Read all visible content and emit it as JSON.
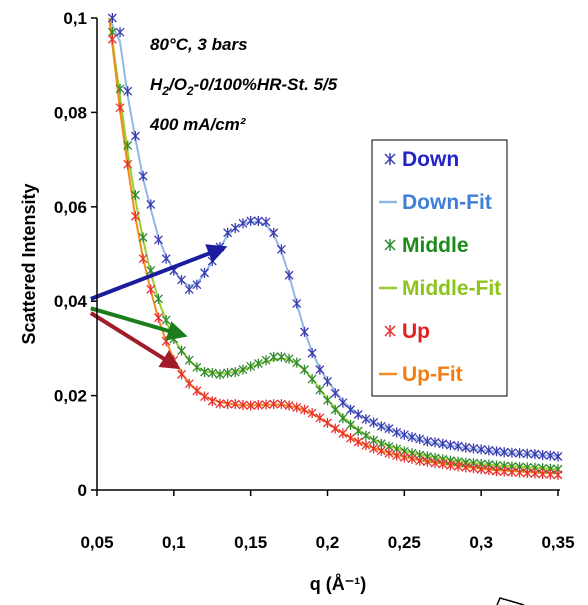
{
  "chart_data": {
    "type": "line",
    "title": "",
    "xlabel": "q (Å⁻¹)",
    "ylabel": "Scattered Intensity",
    "xlim": [
      0.05,
      0.35
    ],
    "ylim": [
      0,
      0.1
    ],
    "x_ticks": [
      "0,05",
      "0,1",
      "0,15",
      "0,2",
      "0,25",
      "0,3",
      "0,35"
    ],
    "y_ticks": [
      "0",
      "0,02",
      "0,04",
      "0,06",
      "0,08",
      "0,1"
    ],
    "grid": false,
    "legend_position": "right",
    "annotations": {
      "line1": "80°C, 3 bars",
      "line2_h": "H",
      "line2_sub1": "2",
      "line2_o": "/O",
      "line2_sub2": "2",
      "line2_rest": "-0/100%HR-St. 5/5",
      "line3": "400 mA/cm²"
    },
    "series": [
      {
        "name": "Down",
        "kind": "marker",
        "marker": "x",
        "color": "#3b3bb0",
        "x": [
          0.06,
          0.065,
          0.07,
          0.075,
          0.08,
          0.085,
          0.09,
          0.095,
          0.1,
          0.105,
          0.11,
          0.115,
          0.12,
          0.125,
          0.13,
          0.135,
          0.14,
          0.145,
          0.15,
          0.155,
          0.16,
          0.165,
          0.17,
          0.175,
          0.18,
          0.185,
          0.19,
          0.195,
          0.2,
          0.205,
          0.21,
          0.215,
          0.22,
          0.225,
          0.23,
          0.235,
          0.24,
          0.245,
          0.25,
          0.255,
          0.26,
          0.265,
          0.27,
          0.275,
          0.28,
          0.285,
          0.29,
          0.295,
          0.3,
          0.305,
          0.31,
          0.315,
          0.32,
          0.325,
          0.33,
          0.335,
          0.34,
          0.345,
          0.35
        ],
        "y": [
          0.1,
          0.097,
          0.0845,
          0.075,
          0.0665,
          0.0605,
          0.053,
          0.049,
          0.0465,
          0.0445,
          0.0425,
          0.0435,
          0.046,
          0.0485,
          0.0515,
          0.0545,
          0.0555,
          0.0565,
          0.057,
          0.057,
          0.0568,
          0.0545,
          0.051,
          0.0455,
          0.0395,
          0.0335,
          0.029,
          0.0255,
          0.023,
          0.0205,
          0.0185,
          0.017,
          0.016,
          0.015,
          0.0143,
          0.0135,
          0.013,
          0.0122,
          0.0117,
          0.0112,
          0.0108,
          0.0103,
          0.0101,
          0.0098,
          0.0095,
          0.0093,
          0.009,
          0.0088,
          0.0086,
          0.0084,
          0.0082,
          0.008,
          0.0079,
          0.0078,
          0.0077,
          0.0076,
          0.0074,
          0.0073,
          0.0071
        ]
      },
      {
        "name": "Down-Fit",
        "kind": "line",
        "color": "#8fb8e6",
        "x": [
          0.058,
          0.065,
          0.07,
          0.075,
          0.08,
          0.085,
          0.09,
          0.095,
          0.1,
          0.105,
          0.11,
          0.115,
          0.12,
          0.125,
          0.13,
          0.135,
          0.14,
          0.145,
          0.15,
          0.155,
          0.16,
          0.165,
          0.17,
          0.175,
          0.18,
          0.185,
          0.19,
          0.195,
          0.2,
          0.21,
          0.22,
          0.23,
          0.24,
          0.25,
          0.26,
          0.27,
          0.28,
          0.29,
          0.3,
          0.31,
          0.32,
          0.33,
          0.34,
          0.35
        ],
        "y": [
          0.1,
          0.095,
          0.0835,
          0.0745,
          0.066,
          0.0595,
          0.0535,
          0.0495,
          0.0465,
          0.0443,
          0.0432,
          0.0438,
          0.0458,
          0.0485,
          0.0512,
          0.054,
          0.0555,
          0.0565,
          0.0568,
          0.0568,
          0.0562,
          0.054,
          0.0505,
          0.0455,
          0.0395,
          0.0338,
          0.0292,
          0.0258,
          0.0232,
          0.0188,
          0.016,
          0.0142,
          0.0128,
          0.0116,
          0.0106,
          0.0099,
          0.0094,
          0.0089,
          0.0085,
          0.0081,
          0.0078,
          0.0076,
          0.0074,
          0.0072
        ]
      },
      {
        "name": "Middle",
        "kind": "marker",
        "marker": "x",
        "color": "#2f8a2f",
        "x": [
          0.06,
          0.065,
          0.07,
          0.075,
          0.08,
          0.085,
          0.09,
          0.095,
          0.1,
          0.105,
          0.11,
          0.115,
          0.12,
          0.125,
          0.13,
          0.135,
          0.14,
          0.145,
          0.15,
          0.155,
          0.16,
          0.165,
          0.17,
          0.175,
          0.18,
          0.185,
          0.19,
          0.195,
          0.2,
          0.205,
          0.21,
          0.215,
          0.22,
          0.225,
          0.23,
          0.235,
          0.24,
          0.245,
          0.25,
          0.255,
          0.26,
          0.265,
          0.27,
          0.275,
          0.28,
          0.285,
          0.29,
          0.295,
          0.3,
          0.305,
          0.31,
          0.315,
          0.32,
          0.325,
          0.33,
          0.335,
          0.34,
          0.345,
          0.35
        ],
        "y": [
          0.097,
          0.085,
          0.073,
          0.0625,
          0.0535,
          0.0465,
          0.0405,
          0.036,
          0.032,
          0.0295,
          0.0275,
          0.026,
          0.025,
          0.0248,
          0.0245,
          0.0248,
          0.025,
          0.0255,
          0.0262,
          0.0268,
          0.0275,
          0.0282,
          0.0282,
          0.0278,
          0.027,
          0.0255,
          0.0235,
          0.0212,
          0.019,
          0.017,
          0.0152,
          0.0138,
          0.0125,
          0.0115,
          0.0105,
          0.0098,
          0.0092,
          0.0087,
          0.0082,
          0.0078,
          0.0074,
          0.0071,
          0.0068,
          0.0065,
          0.0062,
          0.006,
          0.0058,
          0.0057,
          0.0055,
          0.0054,
          0.0052,
          0.0051,
          0.005,
          0.0049,
          0.0048,
          0.0047,
          0.0046,
          0.0045,
          0.0044
        ]
      },
      {
        "name": "Middle-Fit",
        "kind": "line",
        "color": "#9acd32",
        "x": [
          0.058,
          0.065,
          0.07,
          0.075,
          0.08,
          0.085,
          0.09,
          0.095,
          0.1,
          0.105,
          0.11,
          0.115,
          0.12,
          0.13,
          0.14,
          0.15,
          0.16,
          0.17,
          0.175,
          0.18,
          0.185,
          0.19,
          0.2,
          0.21,
          0.22,
          0.23,
          0.24,
          0.25,
          0.26,
          0.27,
          0.28,
          0.29,
          0.3,
          0.31,
          0.32,
          0.33,
          0.34,
          0.35
        ],
        "y": [
          0.1,
          0.0835,
          0.0715,
          0.0615,
          0.053,
          0.046,
          0.0402,
          0.0358,
          0.032,
          0.0295,
          0.0275,
          0.026,
          0.0252,
          0.0246,
          0.025,
          0.026,
          0.0272,
          0.0279,
          0.0277,
          0.0268,
          0.0254,
          0.0236,
          0.0192,
          0.0155,
          0.0127,
          0.0107,
          0.0093,
          0.0083,
          0.0075,
          0.0069,
          0.0063,
          0.0059,
          0.0055,
          0.0052,
          0.005,
          0.0048,
          0.0046,
          0.0044
        ]
      },
      {
        "name": "Up",
        "kind": "marker",
        "marker": "x",
        "color": "#e83030",
        "x": [
          0.06,
          0.065,
          0.07,
          0.075,
          0.08,
          0.085,
          0.09,
          0.095,
          0.1,
          0.105,
          0.11,
          0.115,
          0.12,
          0.125,
          0.13,
          0.135,
          0.14,
          0.145,
          0.15,
          0.155,
          0.16,
          0.165,
          0.17,
          0.175,
          0.18,
          0.185,
          0.19,
          0.195,
          0.2,
          0.205,
          0.21,
          0.215,
          0.22,
          0.225,
          0.23,
          0.235,
          0.24,
          0.245,
          0.25,
          0.255,
          0.26,
          0.265,
          0.27,
          0.275,
          0.28,
          0.285,
          0.29,
          0.295,
          0.3,
          0.305,
          0.31,
          0.315,
          0.32,
          0.325,
          0.33,
          0.335,
          0.34,
          0.345,
          0.35
        ],
        "y": [
          0.0955,
          0.081,
          0.069,
          0.058,
          0.049,
          0.0425,
          0.0365,
          0.0315,
          0.0275,
          0.0245,
          0.0225,
          0.021,
          0.0198,
          0.0188,
          0.0183,
          0.0182,
          0.0182,
          0.018,
          0.0179,
          0.018,
          0.0181,
          0.0182,
          0.0182,
          0.0179,
          0.0175,
          0.017,
          0.0163,
          0.0153,
          0.0142,
          0.013,
          0.012,
          0.011,
          0.0102,
          0.0095,
          0.0088,
          0.0083,
          0.0078,
          0.0073,
          0.0069,
          0.0066,
          0.0062,
          0.006,
          0.0057,
          0.0055,
          0.0052,
          0.005,
          0.0048,
          0.0046,
          0.0044,
          0.0042,
          0.004,
          0.0039,
          0.0038,
          0.0037,
          0.0036,
          0.0035,
          0.0034,
          0.0033,
          0.0032
        ]
      },
      {
        "name": "Up-Fit",
        "kind": "line",
        "color": "#f28c1e",
        "x": [
          0.058,
          0.065,
          0.07,
          0.075,
          0.08,
          0.085,
          0.09,
          0.095,
          0.1,
          0.105,
          0.11,
          0.115,
          0.12,
          0.13,
          0.14,
          0.15,
          0.16,
          0.17,
          0.18,
          0.19,
          0.2,
          0.21,
          0.22,
          0.23,
          0.24,
          0.25,
          0.26,
          0.27,
          0.28,
          0.29,
          0.3,
          0.31,
          0.32,
          0.33,
          0.34,
          0.35
        ],
        "y": [
          0.1,
          0.0805,
          0.0685,
          0.0578,
          0.049,
          0.0422,
          0.0362,
          0.0315,
          0.0277,
          0.0248,
          0.0227,
          0.0211,
          0.0198,
          0.0186,
          0.0181,
          0.0179,
          0.0181,
          0.0181,
          0.0175,
          0.0162,
          0.0142,
          0.012,
          0.0102,
          0.0089,
          0.0078,
          0.007,
          0.0063,
          0.0058,
          0.0053,
          0.0049,
          0.0045,
          0.0042,
          0.004,
          0.0038,
          0.0036,
          0.0035
        ]
      }
    ],
    "arrows": [
      {
        "name": "blue-arrow",
        "color": "#1c1c9e",
        "from": [
          0.046,
          0.0405
        ],
        "to": [
          0.13,
          0.051
        ]
      },
      {
        "name": "green-arrow",
        "color": "#1a7d1a",
        "from": [
          0.046,
          0.0385
        ],
        "to": [
          0.104,
          0.033
        ]
      },
      {
        "name": "red-arrow",
        "color": "#a01c28",
        "from": [
          0.046,
          0.0375
        ],
        "to": [
          0.1,
          0.0265
        ]
      }
    ]
  }
}
